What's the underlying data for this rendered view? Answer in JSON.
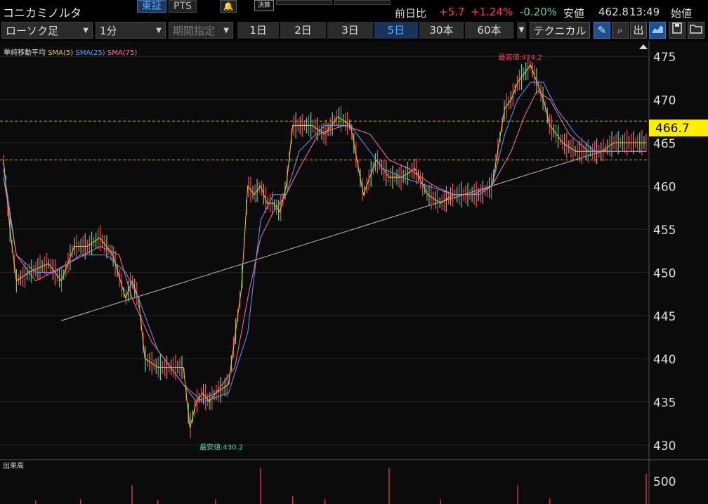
{
  "header": {
    "title": "コニカミノルタ",
    "market_tabs": [
      "東証",
      "PTS"
    ],
    "earnings_label": "決算",
    "quote": {
      "prev_close_label": "前日比",
      "change": "+5.7",
      "change_pct": "+1.24%",
      "other_pct": "-0.20%",
      "low_label": "安値",
      "low_value": "462.8",
      "time": "13:49",
      "open_label": "始値"
    }
  },
  "toolbar": {
    "chart_type": "ローソク足",
    "interval": "1分",
    "period_placeholder": "期間指定",
    "timeframes": [
      "1日",
      "2日",
      "3日",
      "5日",
      "30本",
      "60本"
    ],
    "active_timeframe": "5日",
    "technical_label": "テクニカル",
    "volume_btn": "出"
  },
  "legend": {
    "title": "単純移動平均",
    "sma5": "SMA(5)",
    "sma25": "SMA(25)",
    "sma75": "SMA(75)"
  },
  "colors": {
    "up": "#ff3b5c",
    "down": "#4fd8a0",
    "sma5": "#f0d000",
    "sma25": "#5aa0ff",
    "sma75": "#ff70a8",
    "price_tag": "#ffee00",
    "ref_line": "#d4b400",
    "trend_line": "#bdbdbd"
  },
  "chart_data": {
    "type": "line",
    "y_axis_ticks": [
      475,
      470,
      465,
      460,
      455,
      450,
      445,
      440,
      435,
      430
    ],
    "ylim": [
      428.3,
      476.8
    ],
    "current_price": "466.7",
    "high_label": "最高値:474.2",
    "low_label": "最安値:430.2",
    "reference_lines": [
      467.5,
      463.0
    ],
    "trend_line": {
      "from": [
        0.09,
        444.4
      ],
      "to": [
        0.94,
        464.2
      ]
    },
    "series": [
      {
        "name": "SMA(5)",
        "x": [
          0,
          0.01,
          0.02,
          0.04,
          0.07,
          0.09,
          0.11,
          0.13,
          0.15,
          0.17,
          0.19,
          0.2,
          0.21,
          0.22,
          0.24,
          0.26,
          0.28,
          0.29,
          0.3,
          0.31,
          0.32,
          0.33,
          0.35,
          0.37,
          0.38,
          0.39,
          0.4,
          0.41,
          0.42,
          0.43,
          0.44,
          0.45,
          0.46,
          0.48,
          0.5,
          0.52,
          0.54,
          0.56,
          0.58,
          0.6,
          0.62,
          0.64,
          0.66,
          0.68,
          0.7,
          0.72,
          0.74,
          0.76,
          0.78,
          0.79,
          0.8,
          0.81,
          0.82,
          0.83,
          0.84,
          0.85,
          0.86,
          0.87,
          0.89,
          0.91,
          0.93,
          0.95,
          0.97,
          0.99,
          1.0
        ],
        "y": [
          463,
          455,
          449,
          450,
          451,
          449,
          453,
          453,
          454,
          452,
          447,
          449,
          447,
          440,
          439,
          439,
          439,
          432,
          435,
          436,
          435,
          436,
          437,
          448,
          460,
          459,
          460,
          458,
          458,
          457,
          460,
          467,
          467,
          467,
          466,
          468,
          467,
          459,
          463,
          461,
          461,
          462,
          459,
          458,
          459,
          459,
          459,
          460,
          469,
          470,
          472,
          473,
          474,
          472,
          470,
          467,
          466,
          465,
          464,
          464,
          464,
          465,
          465,
          465,
          465
        ]
      },
      {
        "name": "SMA(25)",
        "x": [
          0,
          0.02,
          0.05,
          0.08,
          0.12,
          0.16,
          0.19,
          0.21,
          0.24,
          0.28,
          0.31,
          0.35,
          0.38,
          0.4,
          0.42,
          0.44,
          0.46,
          0.5,
          0.54,
          0.56,
          0.59,
          0.62,
          0.66,
          0.7,
          0.74,
          0.76,
          0.78,
          0.8,
          0.82,
          0.84,
          0.86,
          0.89,
          0.92,
          0.95,
          1.0
        ],
        "y": [
          462,
          452,
          450,
          450,
          452,
          452,
          450,
          447,
          441,
          437,
          435,
          436,
          443,
          456,
          459,
          459,
          464,
          467,
          467,
          465,
          462,
          461,
          460,
          459,
          459,
          460,
          466,
          470,
          472,
          472,
          469,
          466,
          464,
          464,
          464
        ]
      },
      {
        "name": "SMA(75)",
        "x": [
          0,
          0.02,
          0.05,
          0.1,
          0.15,
          0.18,
          0.2,
          0.23,
          0.27,
          0.3,
          0.33,
          0.36,
          0.38,
          0.4,
          0.42,
          0.44,
          0.46,
          0.49,
          0.53,
          0.57,
          0.6,
          0.63,
          0.67,
          0.7,
          0.73,
          0.76,
          0.79,
          0.81,
          0.83,
          0.85,
          0.88,
          0.91,
          0.94,
          1.0
        ],
        "y": [
          461,
          452,
          449,
          451,
          453,
          452,
          447,
          442,
          438,
          435,
          436,
          439,
          447,
          454,
          457,
          459,
          462,
          466,
          467,
          466,
          463,
          462,
          460,
          459,
          459,
          460,
          464,
          468,
          471,
          470,
          466,
          464,
          464,
          464
        ]
      }
    ],
    "volume": {
      "label": "出来高",
      "tick": "500",
      "x": [
        0.05,
        0.12,
        0.2,
        0.24,
        0.33,
        0.4,
        0.45,
        0.5,
        0.6,
        0.68,
        0.8,
        0.85,
        1.0
      ],
      "v": [
        60,
        80,
        320,
        60,
        80,
        620,
        140,
        80,
        620,
        80,
        320,
        100,
        520
      ]
    }
  }
}
